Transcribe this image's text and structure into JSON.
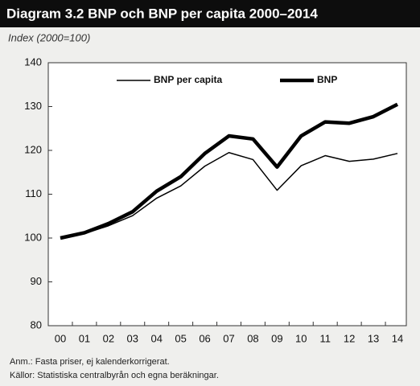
{
  "chart_data": {
    "type": "line",
    "title": "Diagram 3.2 BNP och BNP per capita 2000–2014",
    "subtitle": "Index (2000=100)",
    "categories": [
      "00",
      "01",
      "02",
      "03",
      "04",
      "05",
      "06",
      "07",
      "08",
      "09",
      "10",
      "11",
      "12",
      "13",
      "14"
    ],
    "series": [
      {
        "name": "BNP per capita",
        "color": "#000000",
        "values": [
          100,
          101,
          102.8,
          105.1,
          109.1,
          111.9,
          116.4,
          119.5,
          117.9,
          110.9,
          116.5,
          118.8,
          117.5,
          118,
          119.3
        ]
      },
      {
        "name": "BNP",
        "color": "#000000",
        "values": [
          100,
          101.2,
          103.3,
          106,
          110.7,
          114,
          119.3,
          123.3,
          122.6,
          116.2,
          123.3,
          126.5,
          126.2,
          127.7,
          130.5
        ]
      }
    ],
    "ylim": [
      80,
      140
    ],
    "yticks": [
      80,
      90,
      100,
      110,
      120,
      130,
      140
    ],
    "grid": false,
    "notes": [
      "Anm.: Fasta priser, ej kalenderkorrigerat.",
      "Källor: Statistiska centralbyrån och egna beräkningar."
    ]
  }
}
